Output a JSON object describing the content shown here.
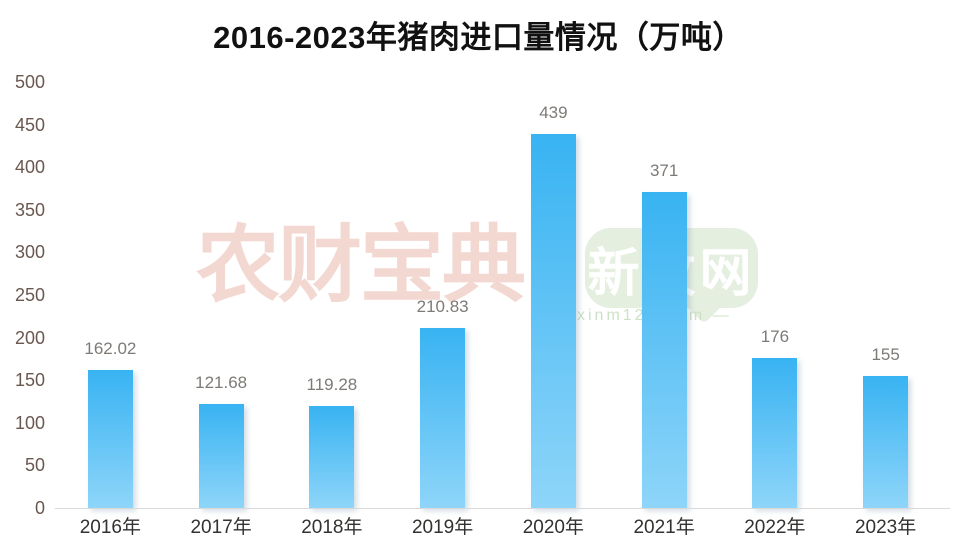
{
  "chart_data": {
    "type": "bar",
    "title": "2016-2023年猪肉进口量情况（万吨）",
    "categories": [
      "2016年",
      "2017年",
      "2018年",
      "2019年",
      "2020年",
      "2021年",
      "2022年",
      "2023年"
    ],
    "values": [
      162.02,
      121.68,
      119.28,
      210.83,
      439,
      371,
      176,
      155
    ],
    "value_labels": [
      "162.02",
      "121.68",
      "119.28",
      "210.83",
      "439",
      "371",
      "176",
      "155"
    ],
    "xlabel": "",
    "ylabel": "",
    "ylim": [
      0,
      500
    ],
    "ytick_step": 50,
    "yticks": [
      "500",
      "450",
      "400",
      "350",
      "300",
      "250",
      "200",
      "150",
      "100",
      "50",
      "0"
    ],
    "grid": false,
    "legend": "none",
    "bar_gradient_top": "#38b3f2",
    "bar_gradient_bottom": "#8ed5f9"
  },
  "watermarks": {
    "brand_left": "农财宝典",
    "brand_right": "新牧网",
    "site": "xinm123.com",
    "dash": "—"
  },
  "colors": {
    "title": "#111111",
    "y_labels": "#6a5750",
    "x_labels": "#343230",
    "value_labels": "#7e7a76",
    "axis_line": "#d9d9d9",
    "watermark_pink": "#f3d8d2",
    "bubble_bg": "#e4efdf",
    "bubble_text": "#ffffff",
    "site_text": "#cde1c7"
  }
}
